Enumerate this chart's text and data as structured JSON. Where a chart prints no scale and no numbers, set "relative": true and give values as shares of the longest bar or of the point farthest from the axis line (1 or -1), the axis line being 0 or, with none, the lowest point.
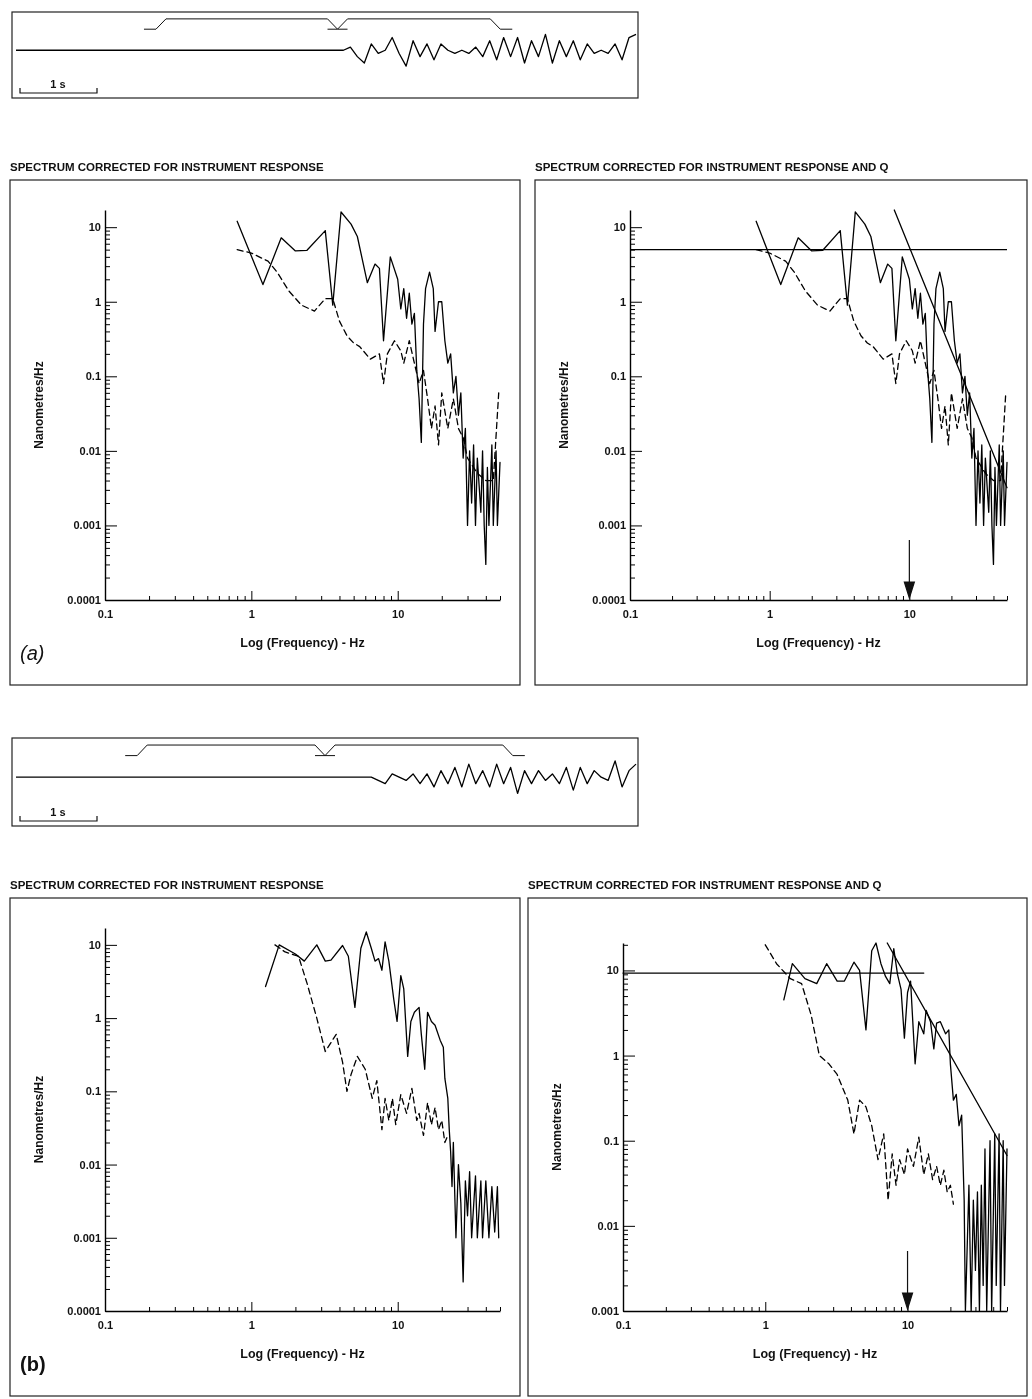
{
  "chart_data": [
    {
      "type": "line",
      "relative": true,
      "color": "#000000",
      "annotations": [
        "1 s"
      ],
      "categories": [
        null,
        null,
        null,
        null,
        null,
        null,
        null,
        null,
        null,
        null,
        null,
        null,
        null,
        null,
        null,
        null,
        null,
        null,
        null,
        null,
        null,
        null,
        null,
        null,
        null,
        null,
        null,
        null,
        null,
        null,
        null,
        null,
        null,
        null,
        null,
        null,
        null,
        null,
        null,
        null,
        null,
        null,
        null,
        null,
        null,
        null,
        null,
        null,
        null,
        null,
        null,
        null,
        null,
        null,
        null,
        null,
        null,
        null,
        null,
        null,
        null,
        null,
        null,
        null,
        null,
        null,
        null,
        null,
        null,
        null,
        null,
        null,
        null,
        null,
        null,
        null,
        null,
        null,
        null,
        null,
        null,
        null,
        null,
        null,
        null,
        null,
        null,
        null,
        null,
        null
      ],
      "values": [
        0.75,
        0.75,
        0.75,
        0.75,
        0.75,
        0.75,
        0.75,
        0.75,
        0.75,
        0.75,
        0.75,
        0.75,
        0.75,
        0.75,
        0.75,
        0.75,
        0.75,
        0.75,
        0.75,
        0.75,
        0.75,
        0.75,
        0.75,
        0.75,
        0.75,
        0.75,
        0.75,
        0.75,
        0.75,
        0.75,
        0.75,
        0.75,
        0.75,
        0.75,
        0.75,
        0.75,
        0.75,
        0.75,
        0.75,
        0.75,
        0.75,
        0.75,
        0.75,
        0.75,
        0.75,
        0.75,
        0.75,
        0.75,
        0.8,
        0.65,
        0.55,
        0.85,
        0.7,
        0.75,
        0.95,
        0.7,
        0.5,
        0.9,
        0.65,
        0.85,
        0.6,
        0.85,
        0.75,
        0.7,
        0.75,
        0.7,
        0.8,
        0.65,
        0.9,
        0.6,
        0.95,
        0.65,
        0.95,
        0.55,
        0.9,
        0.65,
        1,
        0.55,
        0.9,
        0.65,
        0.9,
        0.6,
        0.85,
        0.7,
        0.75,
        0.7,
        0.85,
        0.6,
        0.95,
        1
      ]
    },
    {
      "type": "line",
      "log": "xy",
      "title": "SPECTRUM CORRECTED FOR INSTRUMENT RESPONSE",
      "xlabel": "Log (Frequency) - Hz",
      "ylabel": "Nanometres/Hz",
      "annotations": [
        "(a)"
      ],
      "xlim": [
        0.1,
        50
      ],
      "ylim": [
        0.0001,
        17
      ],
      "xticks": [
        0.1,
        {
          "value": 0.2,
          "label": null
        },
        {
          "value": 0.3,
          "label": null
        },
        {
          "value": 0.4,
          "label": null
        },
        {
          "value": 0.5,
          "label": null
        },
        {
          "value": 0.6,
          "label": null
        },
        {
          "value": 0.7,
          "label": null
        },
        {
          "value": 0.8,
          "label": null
        },
        {
          "value": 0.9,
          "label": null
        },
        1,
        {
          "value": 2,
          "label": null
        },
        {
          "value": 3,
          "label": null
        },
        {
          "value": 4,
          "label": null
        },
        {
          "value": 5,
          "label": null
        },
        {
          "value": 6,
          "label": null
        },
        {
          "value": 7,
          "label": null
        },
        {
          "value": 8,
          "label": null
        },
        {
          "value": 9,
          "label": null
        },
        10,
        {
          "value": 20,
          "label": null
        },
        {
          "value": 30,
          "label": null
        },
        {
          "value": 40,
          "label": null
        },
        {
          "value": 50,
          "label": null
        }
      ],
      "yticks": [
        0.0001,
        {
          "value": 0.0002,
          "label": null
        },
        {
          "value": 0.0003,
          "label": null
        },
        {
          "value": 0.0004,
          "label": null
        },
        {
          "value": 0.0005,
          "label": null
        },
        {
          "value": 0.0006,
          "label": null
        },
        {
          "value": 0.0007,
          "label": null
        },
        {
          "value": 0.0008,
          "label": null
        },
        {
          "value": 0.0009,
          "label": null
        },
        0.001,
        {
          "value": 0.002,
          "label": null
        },
        {
          "value": 0.003,
          "label": null
        },
        {
          "value": 0.004,
          "label": null
        },
        {
          "value": 0.005,
          "label": null
        },
        {
          "value": 0.006,
          "label": null
        },
        {
          "value": 0.007,
          "label": null
        },
        {
          "value": 0.008,
          "label": null
        },
        {
          "value": 0.009,
          "label": null
        },
        0.01,
        {
          "value": 0.02,
          "label": null
        },
        {
          "value": 0.03,
          "label": null
        },
        {
          "value": 0.04,
          "label": null
        },
        {
          "value": 0.05,
          "label": null
        },
        {
          "value": 0.06,
          "label": null
        },
        {
          "value": 0.07,
          "label": null
        },
        {
          "value": 0.08,
          "label": null
        },
        {
          "value": 0.09,
          "label": null
        },
        0.1,
        {
          "value": 0.2,
          "label": null
        },
        {
          "value": 0.3,
          "label": null
        },
        {
          "value": 0.4,
          "label": null
        },
        {
          "value": 0.5,
          "label": null
        },
        {
          "value": 0.6,
          "label": null
        },
        {
          "value": 0.7,
          "label": null
        },
        {
          "value": 0.8,
          "label": null
        },
        {
          "value": 0.9,
          "label": null
        },
        1,
        {
          "value": 2,
          "label": null
        },
        {
          "value": 3,
          "label": null
        },
        {
          "value": 4,
          "label": null
        },
        {
          "value": 5,
          "label": null
        },
        {
          "value": 6,
          "label": null
        },
        {
          "value": 7,
          "label": null
        },
        {
          "value": 8,
          "label": null
        },
        {
          "value": 9,
          "label": null
        },
        10
      ],
      "series": [
        {
          "color": "#000000",
          "line_style": "solid",
          "x": [
            0.8,
            1.2,
            1.6,
            2.0,
            2.4,
            3.2,
            3.6,
            4.1,
            4.8,
            5.3,
            6.2,
            7.0,
            7.5,
            8.0,
            8.9,
            10,
            10.5,
            11,
            11.5,
            12,
            12.5,
            13,
            13.5,
            14,
            14.5,
            15,
            15.5,
            16.5,
            17.5,
            18,
            19,
            20,
            21,
            22,
            23,
            24,
            25,
            26,
            27,
            28,
            29,
            30,
            31,
            32,
            33,
            34,
            35,
            37,
            38,
            39,
            40,
            41,
            42,
            44,
            45,
            47,
            48,
            50
          ],
          "values": [
            12,
            1.7,
            7.2,
            4.8,
            4.9,
            9,
            0.9,
            16,
            11,
            7.5,
            1.8,
            3.2,
            2.8,
            0.3,
            4.0,
            2.0,
            0.8,
            1.5,
            0.6,
            1.3,
            0.5,
            0.7,
            0.12,
            0.05,
            0.013,
            0.5,
            1.5,
            2.5,
            1.5,
            0.4,
            1.0,
            1.0,
            0.3,
            0.15,
            0.2,
            0.06,
            0.1,
            0.03,
            0.06,
            0.008,
            0.02,
            0.001,
            0.01,
            0.002,
            0.012,
            0.001,
            0.008,
            0.0015,
            0.01,
            0.001,
            0.0003,
            0.006,
            0.001,
            0.012,
            0.001,
            0.01,
            0.001,
            0.007
          ]
        },
        {
          "color": "#000000",
          "line_style": "dashed",
          "x": [
            0.8,
            1.0,
            1.3,
            1.5,
            1.8,
            2.2,
            2.7,
            3.2,
            3.6,
            4.0,
            4.5,
            5.0,
            5.5,
            6.5,
            7.5,
            8,
            8.5,
            9.5,
            10.5,
            11,
            12,
            13,
            14,
            15,
            16,
            17,
            18,
            19,
            20,
            22,
            24,
            26,
            28,
            30,
            35,
            40,
            45,
            49
          ],
          "values": [
            5,
            4.5,
            3.5,
            2.5,
            1.4,
            0.9,
            0.75,
            1.1,
            1.1,
            0.55,
            0.35,
            0.28,
            0.25,
            0.17,
            0.2,
            0.08,
            0.2,
            0.3,
            0.22,
            0.15,
            0.3,
            0.15,
            0.08,
            0.12,
            0.05,
            0.02,
            0.04,
            0.012,
            0.06,
            0.02,
            0.05,
            0.02,
            0.015,
            0.008,
            0.005,
            0.004,
            0.004,
            0.06
          ]
        }
      ]
    },
    {
      "type": "line",
      "log": "xy",
      "title": "SPECTRUM CORRECTED FOR INSTRUMENT RESPONSE AND Q",
      "xlabel": "Log (Frequency) - Hz",
      "ylabel": "Nanometres/Hz",
      "xlim": [
        0.1,
        50
      ],
      "ylim": [
        0.0001,
        17
      ],
      "xticks": [
        0.1,
        {
          "value": 0.2,
          "label": null
        },
        {
          "value": 0.3,
          "label": null
        },
        {
          "value": 0.4,
          "label": null
        },
        {
          "value": 0.5,
          "label": null
        },
        {
          "value": 0.6,
          "label": null
        },
        {
          "value": 0.7,
          "label": null
        },
        {
          "value": 0.8,
          "label": null
        },
        {
          "value": 0.9,
          "label": null
        },
        1,
        {
          "value": 2,
          "label": null
        },
        {
          "value": 3,
          "label": null
        },
        {
          "value": 4,
          "label": null
        },
        {
          "value": 5,
          "label": null
        },
        {
          "value": 6,
          "label": null
        },
        {
          "value": 7,
          "label": null
        },
        {
          "value": 8,
          "label": null
        },
        {
          "value": 9,
          "label": null
        },
        10,
        {
          "value": 20,
          "label": null
        },
        {
          "value": 30,
          "label": null
        },
        {
          "value": 40,
          "label": null
        },
        {
          "value": 50,
          "label": null
        }
      ],
      "yticks": [
        0.0001,
        {
          "value": 0.0002,
          "label": null
        },
        {
          "value": 0.0003,
          "label": null
        },
        {
          "value": 0.0004,
          "label": null
        },
        {
          "value": 0.0005,
          "label": null
        },
        {
          "value": 0.0006,
          "label": null
        },
        {
          "value": 0.0007,
          "label": null
        },
        {
          "value": 0.0008,
          "label": null
        },
        {
          "value": 0.0009,
          "label": null
        },
        0.001,
        {
          "value": 0.002,
          "label": null
        },
        {
          "value": 0.003,
          "label": null
        },
        {
          "value": 0.004,
          "label": null
        },
        {
          "value": 0.005,
          "label": null
        },
        {
          "value": 0.006,
          "label": null
        },
        {
          "value": 0.007,
          "label": null
        },
        {
          "value": 0.008,
          "label": null
        },
        {
          "value": 0.009,
          "label": null
        },
        0.01,
        {
          "value": 0.02,
          "label": null
        },
        {
          "value": 0.03,
          "label": null
        },
        {
          "value": 0.04,
          "label": null
        },
        {
          "value": 0.05,
          "label": null
        },
        {
          "value": 0.06,
          "label": null
        },
        {
          "value": 0.07,
          "label": null
        },
        {
          "value": 0.08,
          "label": null
        },
        {
          "value": 0.09,
          "label": null
        },
        0.1,
        {
          "value": 0.2,
          "label": null
        },
        {
          "value": 0.3,
          "label": null
        },
        {
          "value": 0.4,
          "label": null
        },
        {
          "value": 0.5,
          "label": null
        },
        {
          "value": 0.6,
          "label": null
        },
        {
          "value": 0.7,
          "label": null
        },
        {
          "value": 0.8,
          "label": null
        },
        {
          "value": 0.9,
          "label": null
        },
        1,
        {
          "value": 2,
          "label": null
        },
        {
          "value": 3,
          "label": null
        },
        {
          "value": 4,
          "label": null
        },
        {
          "value": 5,
          "label": null
        },
        {
          "value": 6,
          "label": null
        },
        {
          "value": 7,
          "label": null
        },
        {
          "value": 8,
          "label": null
        },
        {
          "value": 9,
          "label": null
        },
        10
      ],
      "ref_lines": [
        {
          "axis": "y",
          "value": 5,
          "color": "#000000"
        }
      ],
      "series": [
        {
          "color": "#000000",
          "line_style": "solid",
          "x": [
            0.8,
            1.2,
            1.6,
            2.0,
            2.4,
            3.2,
            3.6,
            4.1,
            4.8,
            5.3,
            6.2,
            7.0,
            7.5,
            8.0,
            8.9,
            10,
            10.5,
            11,
            11.5,
            12,
            12.5,
            13,
            13.5,
            14,
            14.5,
            15,
            15.5,
            16.5,
            17.5,
            18,
            19,
            20,
            21,
            22,
            23,
            24,
            25,
            26,
            27,
            28,
            29,
            30,
            31,
            32,
            33,
            34,
            35,
            37,
            38,
            39,
            40,
            41,
            42,
            44,
            45,
            47,
            48,
            50
          ],
          "values": [
            12,
            1.7,
            7.2,
            4.8,
            4.9,
            9,
            0.9,
            16,
            11,
            7.5,
            1.8,
            3.2,
            2.8,
            0.3,
            4.0,
            2.0,
            0.8,
            1.5,
            0.6,
            1.3,
            0.5,
            0.7,
            0.12,
            0.05,
            0.013,
            0.5,
            1.5,
            2.5,
            1.5,
            0.4,
            1.0,
            1.0,
            0.3,
            0.15,
            0.2,
            0.06,
            0.1,
            0.03,
            0.06,
            0.008,
            0.02,
            0.001,
            0.01,
            0.002,
            0.012,
            0.001,
            0.008,
            0.0015,
            0.01,
            0.001,
            0.0003,
            0.006,
            0.001,
            0.012,
            0.001,
            0.01,
            0.001,
            0.007
          ]
        },
        {
          "color": "#000000",
          "line_style": "dashed",
          "x": [
            0.8,
            1.0,
            1.3,
            1.5,
            1.8,
            2.2,
            2.7,
            3.2,
            3.6,
            4.0,
            4.5,
            5.0,
            5.5,
            6.5,
            7.5,
            8,
            8.5,
            9.5,
            10.5,
            11,
            12,
            13,
            14,
            15,
            16,
            17,
            18,
            19,
            20,
            22,
            24,
            26,
            28,
            30,
            35,
            40,
            45,
            49
          ],
          "values": [
            5,
            4.5,
            3.5,
            2.5,
            1.4,
            0.9,
            0.75,
            1.1,
            1.1,
            0.55,
            0.35,
            0.28,
            0.25,
            0.17,
            0.2,
            0.08,
            0.2,
            0.3,
            0.22,
            0.15,
            0.3,
            0.15,
            0.08,
            0.12,
            0.05,
            0.02,
            0.04,
            0.012,
            0.06,
            0.02,
            0.05,
            0.02,
            0.015,
            0.008,
            0.005,
            0.004,
            0.004,
            0.06
          ]
        },
        {
          "type": "line",
          "color": "#000000",
          "line_style": "solid",
          "x": [
            7.8,
            50
          ],
          "values": [
            17,
            0.0032
          ]
        }
      ]
    },
    {
      "type": "line",
      "relative": true,
      "color": "#000000",
      "annotations": [
        "1 s"
      ],
      "categories": [
        null,
        null,
        null,
        null,
        null,
        null,
        null,
        null,
        null,
        null,
        null,
        null,
        null,
        null,
        null,
        null,
        null,
        null,
        null,
        null,
        null,
        null,
        null,
        null,
        null,
        null,
        null,
        null,
        null,
        null,
        null,
        null,
        null,
        null,
        null,
        null,
        null,
        null,
        null,
        null,
        null,
        null,
        null,
        null,
        null,
        null,
        null,
        null,
        null,
        null,
        null,
        null,
        null,
        null,
        null,
        null,
        null,
        null,
        null,
        null,
        null,
        null,
        null,
        null,
        null,
        null,
        null,
        null,
        null,
        null,
        null,
        null,
        null,
        null,
        null,
        null,
        null,
        null,
        null,
        null,
        null,
        null,
        null,
        null,
        null,
        null,
        null,
        null,
        null,
        null
      ],
      "values": [
        0.75,
        0.75,
        0.75,
        0.75,
        0.75,
        0.75,
        0.75,
        0.75,
        0.75,
        0.75,
        0.75,
        0.75,
        0.75,
        0.75,
        0.75,
        0.75,
        0.75,
        0.75,
        0.75,
        0.75,
        0.75,
        0.75,
        0.75,
        0.75,
        0.75,
        0.75,
        0.75,
        0.75,
        0.75,
        0.75,
        0.75,
        0.75,
        0.75,
        0.75,
        0.75,
        0.75,
        0.75,
        0.75,
        0.75,
        0.75,
        0.75,
        0.75,
        0.75,
        0.75,
        0.75,
        0.75,
        0.75,
        0.75,
        0.75,
        0.75,
        0.75,
        0.75,
        0.7,
        0.65,
        0.8,
        0.75,
        0.7,
        0.8,
        0.65,
        0.8,
        0.6,
        0.85,
        0.65,
        0.9,
        0.6,
        0.95,
        0.65,
        0.85,
        0.6,
        0.95,
        0.65,
        0.9,
        0.5,
        0.85,
        0.65,
        0.85,
        0.7,
        0.8,
        0.65,
        0.9,
        0.55,
        0.9,
        0.65,
        0.85,
        0.75,
        0.7,
        1,
        0.6,
        0.85,
        0.95
      ]
    },
    {
      "type": "line",
      "log": "xy",
      "title": "SPECTRUM CORRECTED FOR INSTRUMENT RESPONSE",
      "xlabel": "Log (Frequency) - Hz",
      "ylabel": "Nanometres/Hz",
      "annotations": [
        "(b)"
      ],
      "xlim": [
        0.1,
        50
      ],
      "ylim": [
        0.0001,
        17
      ],
      "xticks": [
        0.1,
        {
          "value": 0.2,
          "label": null
        },
        {
          "value": 0.3,
          "label": null
        },
        {
          "value": 0.4,
          "label": null
        },
        {
          "value": 0.5,
          "label": null
        },
        {
          "value": 0.6,
          "label": null
        },
        {
          "value": 0.7,
          "label": null
        },
        {
          "value": 0.8,
          "label": null
        },
        {
          "value": 0.9,
          "label": null
        },
        1,
        {
          "value": 2,
          "label": null
        },
        {
          "value": 3,
          "label": null
        },
        {
          "value": 4,
          "label": null
        },
        {
          "value": 5,
          "label": null
        },
        {
          "value": 6,
          "label": null
        },
        {
          "value": 7,
          "label": null
        },
        {
          "value": 8,
          "label": null
        },
        {
          "value": 9,
          "label": null
        },
        10,
        {
          "value": 20,
          "label": null
        },
        {
          "value": 30,
          "label": null
        },
        {
          "value": 40,
          "label": null
        },
        {
          "value": 50,
          "label": null
        }
      ],
      "yticks": [
        0.0001,
        {
          "value": 0.0002,
          "label": null
        },
        {
          "value": 0.0003,
          "label": null
        },
        {
          "value": 0.0004,
          "label": null
        },
        {
          "value": 0.0005,
          "label": null
        },
        {
          "value": 0.0006,
          "label": null
        },
        {
          "value": 0.0007,
          "label": null
        },
        {
          "value": 0.0008,
          "label": null
        },
        {
          "value": 0.0009,
          "label": null
        },
        0.001,
        {
          "value": 0.002,
          "label": null
        },
        {
          "value": 0.003,
          "label": null
        },
        {
          "value": 0.004,
          "label": null
        },
        {
          "value": 0.005,
          "label": null
        },
        {
          "value": 0.006,
          "label": null
        },
        {
          "value": 0.007,
          "label": null
        },
        {
          "value": 0.008,
          "label": null
        },
        {
          "value": 0.009,
          "label": null
        },
        0.01,
        {
          "value": 0.02,
          "label": null
        },
        {
          "value": 0.03,
          "label": null
        },
        {
          "value": 0.04,
          "label": null
        },
        {
          "value": 0.05,
          "label": null
        },
        {
          "value": 0.06,
          "label": null
        },
        {
          "value": 0.07,
          "label": null
        },
        {
          "value": 0.08,
          "label": null
        },
        {
          "value": 0.09,
          "label": null
        },
        0.1,
        {
          "value": 0.2,
          "label": null
        },
        {
          "value": 0.3,
          "label": null
        },
        {
          "value": 0.4,
          "label": null
        },
        {
          "value": 0.5,
          "label": null
        },
        {
          "value": 0.6,
          "label": null
        },
        {
          "value": 0.7,
          "label": null
        },
        {
          "value": 0.8,
          "label": null
        },
        {
          "value": 0.9,
          "label": null
        },
        1,
        {
          "value": 2,
          "label": null
        },
        {
          "value": 3,
          "label": null
        },
        {
          "value": 4,
          "label": null
        },
        {
          "value": 5,
          "label": null
        },
        {
          "value": 6,
          "label": null
        },
        {
          "value": 7,
          "label": null
        },
        {
          "value": 8,
          "label": null
        },
        {
          "value": 9,
          "label": null
        },
        10
      ],
      "series": [
        {
          "color": "#000000",
          "line_style": "solid",
          "x": [
            1.25,
            1.55,
            2.0,
            2.3,
            2.8,
            3.2,
            3.5,
            4.2,
            4.6,
            5.1,
            5.6,
            6.1,
            6.6,
            7.0,
            7.4,
            7.8,
            8.2,
            8.7,
            9.4,
            9.9,
            10.5,
            11,
            11.7,
            12.3,
            13,
            14,
            14.5,
            15.3,
            16,
            17,
            18,
            19.5,
            20.5,
            21,
            22,
            22.5,
            23,
            23.5,
            24,
            25,
            26,
            27,
            28,
            29,
            30,
            31,
            32,
            34,
            35,
            37,
            38,
            40,
            42,
            44,
            46,
            48,
            49
          ],
          "values": [
            2.7,
            10,
            7.5,
            6,
            10,
            6,
            6.2,
            9.8,
            7,
            1.4,
            9,
            15,
            9,
            6,
            6.5,
            4.5,
            11,
            6,
            1.8,
            0.9,
            3.8,
            2.5,
            0.3,
            0.9,
            1.2,
            1.4,
            0.6,
            0.2,
            1.2,
            0.9,
            0.8,
            0.5,
            0.4,
            0.15,
            0.08,
            0.03,
            0.015,
            0.005,
            0.02,
            0.001,
            0.01,
            0.003,
            0.00025,
            0.006,
            0.002,
            0.008,
            0.001,
            0.007,
            0.001,
            0.006,
            0.001,
            0.006,
            0.001,
            0.005,
            0.0012,
            0.005,
            0.001
          ]
        },
        {
          "color": "#000000",
          "line_style": "dashed",
          "x": [
            1.45,
            1.7,
            2.1,
            2.4,
            2.8,
            3.2,
            3.8,
            4.2,
            4.5,
            4.8,
            5.3,
            6.0,
            6.7,
            7.2,
            7.8,
            8.2,
            8.7,
            9.2,
            9.7,
            10.5,
            11.5,
            12.5,
            13.5,
            14,
            15,
            16,
            17,
            18,
            19,
            20,
            21,
            22
          ],
          "values": [
            10,
            8,
            7,
            3,
            1.0,
            0.35,
            0.6,
            0.25,
            0.1,
            0.17,
            0.3,
            0.2,
            0.08,
            0.14,
            0.03,
            0.08,
            0.04,
            0.08,
            0.035,
            0.09,
            0.05,
            0.11,
            0.04,
            0.05,
            0.025,
            0.07,
            0.035,
            0.06,
            0.03,
            0.04,
            0.02,
            0.025
          ]
        }
      ]
    },
    {
      "type": "line",
      "log": "xy",
      "title": "SPECTRUM CORRECTED FOR INSTRUMENT RESPONSE AND Q",
      "xlabel": "Log (Frequency) - Hz",
      "ylabel": "Nanometres/Hz",
      "xlim": [
        0.1,
        50
      ],
      "ylim": [
        0.001,
        21
      ],
      "xticks": [
        0.1,
        {
          "value": 0.2,
          "label": null
        },
        {
          "value": 0.3,
          "label": null
        },
        {
          "value": 0.4,
          "label": null
        },
        {
          "value": 0.5,
          "label": null
        },
        {
          "value": 0.6,
          "label": null
        },
        {
          "value": 0.7,
          "label": null
        },
        {
          "value": 0.8,
          "label": null
        },
        {
          "value": 0.9,
          "label": null
        },
        1,
        {
          "value": 2,
          "label": null
        },
        {
          "value": 3,
          "label": null
        },
        {
          "value": 4,
          "label": null
        },
        {
          "value": 5,
          "label": null
        },
        {
          "value": 6,
          "label": null
        },
        {
          "value": 7,
          "label": null
        },
        {
          "value": 8,
          "label": null
        },
        {
          "value": 9,
          "label": null
        },
        10,
        {
          "value": 20,
          "label": null
        },
        {
          "value": 30,
          "label": null
        },
        {
          "value": 40,
          "label": null
        },
        {
          "value": 50,
          "label": null
        }
      ],
      "yticks": [
        0.001,
        {
          "value": 0.002,
          "label": null
        },
        {
          "value": 0.003,
          "label": null
        },
        {
          "value": 0.004,
          "label": null
        },
        {
          "value": 0.005,
          "label": null
        },
        {
          "value": 0.006,
          "label": null
        },
        {
          "value": 0.007,
          "label": null
        },
        {
          "value": 0.008,
          "label": null
        },
        {
          "value": 0.009,
          "label": null
        },
        0.01,
        {
          "value": 0.02,
          "label": null
        },
        {
          "value": 0.03,
          "label": null
        },
        {
          "value": 0.04,
          "label": null
        },
        {
          "value": 0.05,
          "label": null
        },
        {
          "value": 0.06,
          "label": null
        },
        {
          "value": 0.07,
          "label": null
        },
        {
          "value": 0.08,
          "label": null
        },
        {
          "value": 0.09,
          "label": null
        },
        0.1,
        {
          "value": 0.2,
          "label": null
        },
        {
          "value": 0.3,
          "label": null
        },
        {
          "value": 0.4,
          "label": null
        },
        {
          "value": 0.5,
          "label": null
        },
        {
          "value": 0.6,
          "label": null
        },
        {
          "value": 0.7,
          "label": null
        },
        {
          "value": 0.8,
          "label": null
        },
        {
          "value": 0.9,
          "label": null
        },
        1,
        {
          "value": 2,
          "label": null
        },
        {
          "value": 3,
          "label": null
        },
        {
          "value": 4,
          "label": null
        },
        {
          "value": 5,
          "label": null
        },
        {
          "value": 6,
          "label": null
        },
        {
          "value": 7,
          "label": null
        },
        {
          "value": 8,
          "label": null
        },
        {
          "value": 9,
          "label": null
        },
        10,
        {
          "value": 20,
          "label": null
        }
      ],
      "series": [
        {
          "color": "#000000",
          "line_style": "solid",
          "x": [
            1.35,
            1.55,
            1.9,
            2.3,
            2.7,
            3.2,
            3.6,
            4.2,
            4.6,
            5.1,
            5.6,
            6.0,
            6.5,
            7.0,
            7.5,
            8.0,
            8.5,
            9.0,
            9.5,
            10,
            10.5,
            11.3,
            12,
            13,
            13.5,
            14.5,
            15.3,
            16,
            17,
            18.5,
            19.5,
            20,
            21,
            22,
            23,
            24,
            25,
            25.5,
            27,
            28,
            29,
            30,
            31,
            32,
            33,
            34,
            35,
            36,
            38,
            39,
            41,
            42,
            44,
            45,
            47,
            48,
            50
          ],
          "values": [
            4.5,
            12,
            8,
            7,
            12,
            7.5,
            7.5,
            12.5,
            10,
            2,
            17,
            21,
            12,
            8.5,
            7,
            18,
            9,
            6,
            1.6,
            5.5,
            7.5,
            0.8,
            2.5,
            1.8,
            3.4,
            2.5,
            1.2,
            2.4,
            2.5,
            1.8,
            2,
            0.8,
            0.3,
            0.35,
            0.15,
            0.2,
            0.02,
            0.001,
            0.03,
            0.001,
            0.02,
            0.003,
            0.025,
            0.001,
            0.03,
            0.002,
            0.08,
            0.001,
            0.1,
            0.001,
            0.12,
            0.002,
            0.12,
            0.001,
            0.1,
            0.002,
            0.08
          ]
        },
        {
          "color": "#000000",
          "line_style": "dashed",
          "x": [
            1.0,
            1.2,
            1.5,
            1.8,
            2.1,
            2.4,
            2.8,
            3.2,
            3.8,
            4.2,
            4.6,
            5.1,
            5.6,
            6.2,
            6.8,
            7.3,
            7.8,
            8.3,
            8.8,
            9.5,
            10,
            11,
            12,
            13,
            14,
            15,
            16,
            17,
            18,
            19,
            20,
            21
          ],
          "values": [
            20,
            12,
            8,
            7,
            3,
            1.0,
            0.8,
            0.6,
            0.3,
            0.12,
            0.3,
            0.25,
            0.15,
            0.06,
            0.12,
            0.02,
            0.07,
            0.03,
            0.06,
            0.04,
            0.08,
            0.05,
            0.11,
            0.04,
            0.07,
            0.035,
            0.05,
            0.03,
            0.045,
            0.025,
            0.03,
            0.018
          ]
        },
        {
          "type": "line",
          "color": "#000000",
          "line_style": "solid",
          "x": [
            0.1,
            13
          ],
          "values": [
            9.3,
            9.3
          ]
        },
        {
          "type": "line",
          "color": "#000000",
          "line_style": "solid",
          "x": [
            7.2,
            50
          ],
          "values": [
            21,
            0.067
          ]
        }
      ]
    }
  ]
}
